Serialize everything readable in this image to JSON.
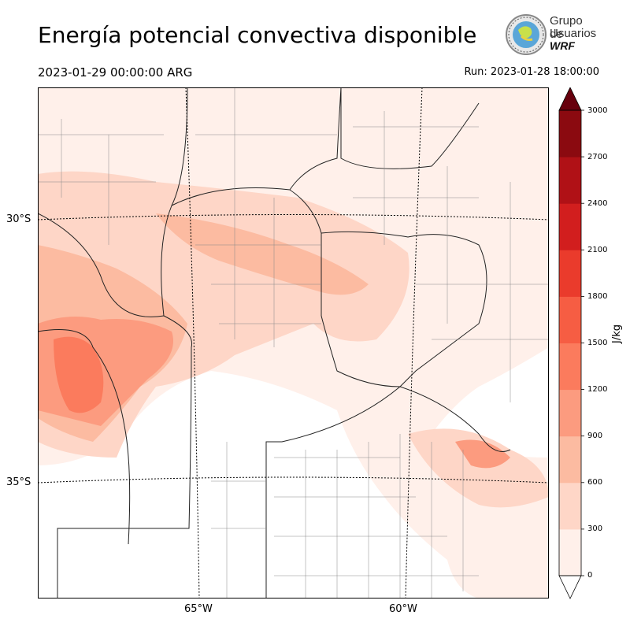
{
  "header": {
    "title": "Energía potencial convectiva disponible",
    "valid_time": "2023-01-29 00:00:00 ARG",
    "run_time": "Run: 2023-01-28 18:00:00"
  },
  "logo": {
    "line1": "Grupo de",
    "line2": "Usuarios",
    "line3": "WRF"
  },
  "map": {
    "lat_labels": [
      "30°S",
      "35°S"
    ],
    "lon_labels": [
      "65°W",
      "60°W"
    ]
  },
  "colorbar": {
    "unit": "J/kg",
    "ticks": [
      "0",
      "300",
      "600",
      "900",
      "1200",
      "1500",
      "1800",
      "2100",
      "2400",
      "2700",
      "3000"
    ],
    "colors": [
      "#fff0ea",
      "#fed6c7",
      "#fcbba1",
      "#fc9b7f",
      "#fb7b5d",
      "#f65d43",
      "#ea3b2c",
      "#d21e1e",
      "#b01116",
      "#8b0a10",
      "#67000d"
    ]
  }
}
